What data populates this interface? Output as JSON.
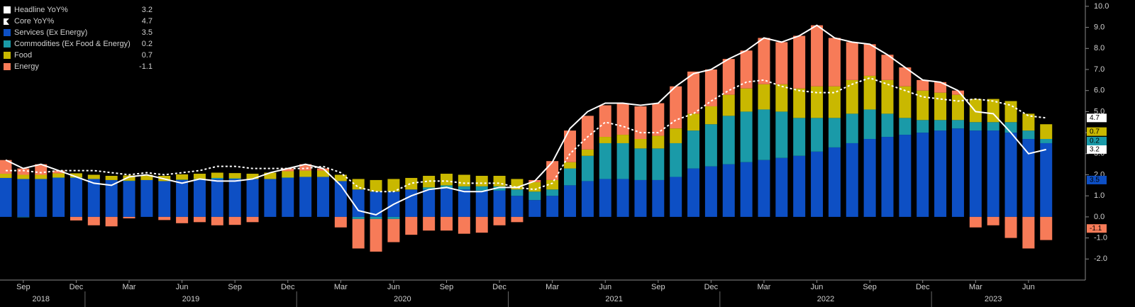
{
  "chart_data": {
    "type": "bar",
    "categories": [
      null,
      "Sep",
      null,
      null,
      "Dec",
      null,
      null,
      "Mar",
      null,
      null,
      "Jun",
      null,
      null,
      "Sep",
      null,
      null,
      "Dec",
      null,
      null,
      "Mar",
      null,
      null,
      "Jun",
      null,
      null,
      "Sep",
      null,
      null,
      "Dec",
      null,
      null,
      "Mar",
      null,
      null,
      "Jun",
      null,
      null,
      "Sep",
      null,
      null,
      "Dec",
      null,
      null,
      "Mar",
      null,
      null,
      "Jun",
      null,
      null,
      "Sep",
      null,
      null,
      "Dec",
      null,
      null,
      "Mar",
      null,
      null,
      "Jun",
      null
    ],
    "years": [
      "2018",
      "2019",
      "2020",
      "2021",
      "2022",
      "2023"
    ],
    "series": [
      {
        "name": "Headline YoY%",
        "type": "line",
        "style": "solid",
        "color": "#ffffff",
        "values": [
          2.7,
          2.3,
          2.5,
          2.2,
          1.9,
          1.6,
          1.5,
          1.9,
          2.0,
          1.8,
          1.6,
          1.8,
          1.7,
          1.7,
          1.8,
          2.1,
          2.3,
          2.5,
          2.3,
          1.5,
          0.3,
          0.1,
          0.6,
          1.0,
          1.3,
          1.4,
          1.2,
          1.2,
          1.4,
          1.4,
          1.7,
          2.6,
          4.2,
          5.0,
          5.4,
          5.4,
          5.3,
          5.4,
          6.2,
          6.8,
          7.0,
          7.5,
          7.9,
          8.5,
          8.3,
          8.6,
          9.1,
          8.5,
          8.3,
          8.2,
          7.7,
          7.1,
          6.5,
          6.4,
          6.0,
          5.0,
          4.9,
          4.0,
          3.0,
          3.2
        ]
      },
      {
        "name": "Core YoY%",
        "type": "line",
        "style": "dotted",
        "color": "#ffffff",
        "values": [
          2.2,
          2.2,
          2.1,
          2.2,
          2.2,
          2.2,
          2.1,
          2.0,
          2.1,
          2.0,
          2.1,
          2.2,
          2.4,
          2.4,
          2.3,
          2.3,
          2.3,
          2.3,
          2.4,
          2.1,
          1.4,
          1.2,
          1.2,
          1.6,
          1.7,
          1.7,
          1.6,
          1.6,
          1.6,
          1.4,
          1.3,
          1.6,
          3.0,
          3.8,
          4.5,
          4.3,
          4.0,
          4.0,
          4.6,
          4.9,
          5.5,
          6.0,
          6.4,
          6.5,
          6.2,
          6.0,
          5.9,
          5.9,
          6.3,
          6.6,
          6.3,
          6.0,
          5.7,
          5.6,
          5.5,
          5.6,
          5.5,
          5.3,
          4.8,
          4.7
        ]
      },
      {
        "name": "Services (Ex Energy)",
        "type": "bar",
        "color": "#0d4fc4",
        "values": [
          1.85,
          1.8,
          1.8,
          1.85,
          1.85,
          1.8,
          1.75,
          1.7,
          1.75,
          1.7,
          1.75,
          1.75,
          1.8,
          1.8,
          1.8,
          1.8,
          1.85,
          1.9,
          1.9,
          1.7,
          1.3,
          1.2,
          1.2,
          1.3,
          1.3,
          1.35,
          1.3,
          1.25,
          1.25,
          1.0,
          0.8,
          1.0,
          1.5,
          1.7,
          1.8,
          1.8,
          1.75,
          1.75,
          1.9,
          2.3,
          2.4,
          2.5,
          2.6,
          2.7,
          2.8,
          2.9,
          3.1,
          3.3,
          3.5,
          3.7,
          3.8,
          3.9,
          4.0,
          4.1,
          4.2,
          4.1,
          4.1,
          4.0,
          3.7,
          3.5
        ]
      },
      {
        "name": "Commodities (Ex Food & Energy)",
        "type": "bar",
        "color": "#1a9aa8",
        "values": [
          0.0,
          -0.02,
          0.0,
          0.02,
          0.02,
          0.0,
          0.0,
          0.02,
          0.0,
          0.0,
          0.02,
          0.05,
          0.05,
          0.03,
          0.0,
          0.0,
          0.02,
          0.0,
          0.0,
          0.0,
          -0.1,
          -0.1,
          -0.1,
          0.0,
          0.1,
          0.15,
          0.15,
          0.2,
          0.2,
          0.3,
          0.4,
          0.3,
          0.8,
          1.2,
          1.7,
          1.7,
          1.5,
          1.5,
          1.6,
          1.8,
          2.0,
          2.3,
          2.4,
          2.4,
          2.2,
          1.8,
          1.6,
          1.4,
          1.4,
          1.4,
          1.1,
          0.8,
          0.6,
          0.5,
          0.4,
          0.4,
          0.4,
          0.5,
          0.4,
          0.2
        ]
      },
      {
        "name": "Food",
        "type": "bar",
        "color": "#c9b800",
        "values": [
          0.2,
          0.2,
          0.2,
          0.2,
          0.2,
          0.2,
          0.2,
          0.25,
          0.25,
          0.25,
          0.25,
          0.25,
          0.25,
          0.25,
          0.25,
          0.3,
          0.3,
          0.3,
          0.3,
          0.3,
          0.5,
          0.55,
          0.6,
          0.55,
          0.55,
          0.55,
          0.55,
          0.5,
          0.5,
          0.5,
          0.45,
          0.45,
          0.3,
          0.3,
          0.3,
          0.4,
          0.45,
          0.6,
          0.7,
          0.8,
          0.85,
          1.0,
          1.1,
          1.2,
          1.3,
          1.4,
          1.5,
          1.5,
          1.6,
          1.6,
          1.6,
          1.5,
          1.4,
          1.3,
          1.2,
          1.1,
          1.1,
          1.0,
          0.8,
          0.7
        ]
      },
      {
        "name": "Energy",
        "type": "bar",
        "color": "#f77b58",
        "values": [
          0.65,
          0.3,
          0.5,
          0.13,
          -0.17,
          -0.4,
          -0.45,
          -0.07,
          0.0,
          -0.15,
          -0.3,
          -0.25,
          -0.4,
          -0.38,
          -0.25,
          0.0,
          0.13,
          0.3,
          0.1,
          -0.5,
          -1.4,
          -1.55,
          -1.1,
          -0.85,
          -0.65,
          -0.65,
          -0.8,
          -0.75,
          -0.4,
          -0.25,
          0.1,
          0.9,
          1.5,
          1.6,
          1.5,
          1.5,
          1.55,
          1.55,
          2.0,
          2.0,
          1.75,
          1.7,
          1.8,
          2.2,
          2.0,
          2.5,
          2.9,
          2.3,
          1.8,
          1.5,
          1.2,
          0.9,
          0.5,
          0.5,
          0.2,
          -0.5,
          -0.4,
          -1.0,
          -1.5,
          -1.1
        ]
      }
    ],
    "ylim": [
      -3.0,
      10.3
    ],
    "yticks": [
      {
        "value": -2,
        "label": "-2.0"
      },
      {
        "value": -1,
        "label": "-1.0"
      },
      {
        "value": 0,
        "label": "0.0"
      },
      {
        "value": 1,
        "label": "1.0"
      },
      {
        "value": 2,
        "label": "2.0"
      },
      {
        "value": 3,
        "label": "3.0"
      },
      {
        "value": 4,
        "label": "4.0"
      },
      {
        "value": 5,
        "label": "5.0"
      },
      {
        "value": 6,
        "label": "6.0"
      },
      {
        "value": 7,
        "label": "7.0"
      },
      {
        "value": 8,
        "label": "8.0"
      },
      {
        "value": 9,
        "label": "9.0"
      },
      {
        "value": 10,
        "label": "10.0"
      }
    ],
    "grid": false,
    "legend": "top-left"
  }
}
